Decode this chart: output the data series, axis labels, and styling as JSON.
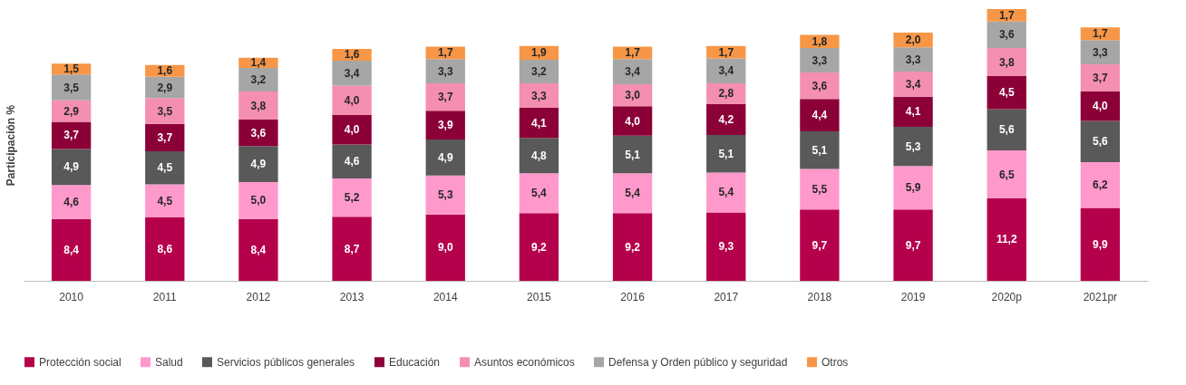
{
  "chart_data": {
    "type": "bar",
    "stacked": true,
    "ylabel": "Participación %",
    "legend": "bottom",
    "grid": false,
    "categories": [
      "2010",
      "2011",
      "2012",
      "2013",
      "2014",
      "2015",
      "2016",
      "2017",
      "2018",
      "2019",
      "2020p",
      "2021pr"
    ],
    "series": [
      {
        "name": "Protección social",
        "color": "#b5004b",
        "values": [
          8.4,
          8.6,
          8.4,
          8.7,
          9.0,
          9.2,
          9.2,
          9.3,
          9.7,
          9.7,
          11.2,
          9.9
        ],
        "value_labels": [
          "8,4",
          "8,6",
          "8,4",
          "8,7",
          "9,0",
          "9,2",
          "9,2",
          "9,3",
          "9,7",
          "9,7",
          "11,2",
          "9,9"
        ]
      },
      {
        "name": "Salud",
        "color": "#ff99cc",
        "values": [
          4.6,
          4.5,
          5.0,
          5.2,
          5.3,
          5.4,
          5.4,
          5.4,
          5.5,
          5.9,
          6.5,
          6.2
        ],
        "value_labels": [
          "4,6",
          "4,5",
          "5,0",
          "5,2",
          "5,3",
          "5,4",
          "5,4",
          "5,4",
          "5,5",
          "5,9",
          "6,5",
          "6,2"
        ]
      },
      {
        "name": "Servicios públicos generales",
        "color": "#595959",
        "values": [
          4.9,
          4.5,
          4.9,
          4.6,
          4.9,
          4.8,
          5.1,
          5.1,
          5.1,
          5.3,
          5.6,
          5.6
        ],
        "value_labels": [
          "4,9",
          "4,5",
          "4,9",
          "4,6",
          "4,9",
          "4,8",
          "5,1",
          "5,1",
          "5,1",
          "5,3",
          "5,6",
          "5,6"
        ]
      },
      {
        "name": "Educación",
        "color": "#8c0038",
        "values": [
          3.7,
          3.7,
          3.6,
          4.0,
          3.9,
          4.1,
          4.0,
          4.2,
          4.4,
          4.1,
          4.5,
          4.0
        ],
        "value_labels": [
          "3,7",
          "3,7",
          "3,6",
          "4,0",
          "3,9",
          "4,1",
          "4,0",
          "4,2",
          "4,4",
          "4,1",
          "4,5",
          "4,0"
        ]
      },
      {
        "name": "Asuntos económicos",
        "color": "#f48fb1",
        "values": [
          2.9,
          3.5,
          3.8,
          4.0,
          3.7,
          3.3,
          3.0,
          2.8,
          3.6,
          3.4,
          3.8,
          3.7
        ],
        "value_labels": [
          "2,9",
          "3,5",
          "3,8",
          "4,0",
          "3,7",
          "3,3",
          "3,0",
          "2,8",
          "3,6",
          "3,4",
          "3,8",
          "3,7"
        ]
      },
      {
        "name": "Defensa y Orden público y seguridad",
        "color": "#a6a6a6",
        "values": [
          3.5,
          2.9,
          3.2,
          3.4,
          3.3,
          3.2,
          3.4,
          3.4,
          3.3,
          3.3,
          3.6,
          3.3
        ],
        "value_labels": [
          "3,5",
          "2,9",
          "3,2",
          "3,4",
          "3,3",
          "3,2",
          "3,4",
          "3,4",
          "3,3",
          "3,3",
          "3,6",
          "3,3"
        ]
      },
      {
        "name": "Otros",
        "color": "#f79646",
        "values": [
          1.5,
          1.6,
          1.4,
          1.6,
          1.7,
          1.9,
          1.7,
          1.7,
          1.8,
          2.0,
          1.7,
          1.7
        ],
        "value_labels": [
          "1,5",
          "1,6",
          "1,4",
          "1,6",
          "1,7",
          "1,9",
          "1,7",
          "1,7",
          "1,8",
          "2,0",
          "1,7",
          "1,7"
        ]
      }
    ]
  }
}
